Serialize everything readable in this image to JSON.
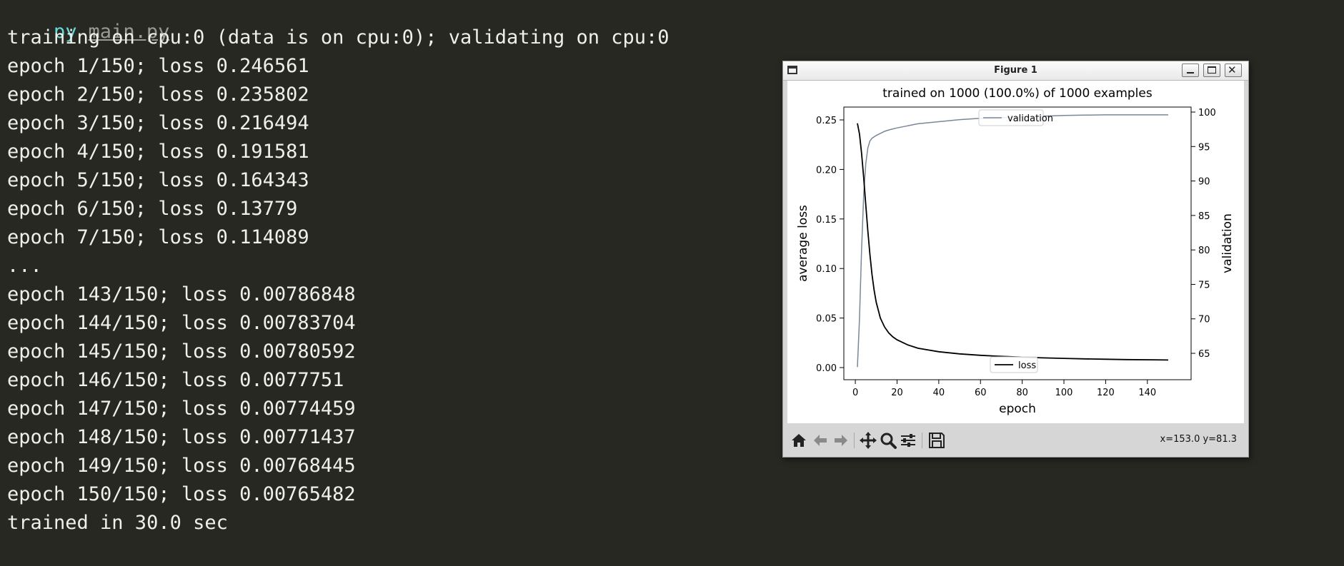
{
  "terminal": {
    "prompt": {
      "command": "py",
      "file": "main.py"
    },
    "lines": [
      "training on cpu:0 (data is on cpu:0); validating on cpu:0",
      "epoch 1/150; loss 0.246561",
      "epoch 2/150; loss 0.235802",
      "epoch 3/150; loss 0.216494",
      "epoch 4/150; loss 0.191581",
      "epoch 5/150; loss 0.164343",
      "epoch 6/150; loss 0.13779",
      "epoch 7/150; loss 0.114089",
      "...",
      "epoch 143/150; loss 0.00786848",
      "epoch 144/150; loss 0.00783704",
      "epoch 145/150; loss 0.00780592",
      "epoch 146/150; loss 0.0077751",
      "epoch 147/150; loss 0.00774459",
      "epoch 148/150; loss 0.00771437",
      "epoch 149/150; loss 0.00768445",
      "epoch 150/150; loss 0.00765482",
      "trained in 30.0 sec"
    ]
  },
  "window": {
    "title": "Figure 1",
    "toolbar": {
      "buttons": [
        "home-icon",
        "back-arrow-icon",
        "forward-arrow-icon",
        "pan-icon",
        "zoom-icon",
        "configure-subplots-icon",
        "save-icon"
      ],
      "coords": "x=153.0 y=81.3"
    }
  },
  "chart_data": {
    "type": "line",
    "title": "trained on 1000 (100.0%) of 1000 examples",
    "xlabel": "epoch",
    "ylabel": "average loss",
    "y2label": "validation",
    "xlim": [
      1,
      150
    ],
    "ylim": [
      0.0,
      0.25
    ],
    "y2lim": [
      62,
      100
    ],
    "x_ticks": [
      0,
      20,
      40,
      60,
      80,
      100,
      120,
      140
    ],
    "y_ticks": [
      "0.00",
      "0.05",
      "0.10",
      "0.15",
      "0.20",
      "0.25"
    ],
    "y2_ticks": [
      65,
      70,
      75,
      80,
      85,
      90,
      95,
      100
    ],
    "grid": false,
    "series": [
      {
        "name": "loss",
        "axis": "left",
        "color": "#000000",
        "legend": "bottom-center",
        "x": [
          1,
          2,
          3,
          4,
          5,
          6,
          7,
          8,
          9,
          10,
          12,
          14,
          16,
          18,
          20,
          25,
          30,
          40,
          50,
          60,
          70,
          80,
          90,
          100,
          110,
          120,
          130,
          143,
          150
        ],
        "y": [
          0.246561,
          0.235802,
          0.216494,
          0.191581,
          0.164343,
          0.13779,
          0.114089,
          0.094,
          0.078,
          0.066,
          0.05,
          0.041,
          0.035,
          0.031,
          0.028,
          0.023,
          0.0195,
          0.016,
          0.0138,
          0.0124,
          0.0113,
          0.0105,
          0.0098,
          0.0093,
          0.0088,
          0.0084,
          0.0081,
          0.00786848,
          0.00765482
        ]
      },
      {
        "name": "validation",
        "axis": "right",
        "color": "#7a8799",
        "legend": "top-center",
        "x": [
          1,
          2,
          3,
          4,
          5,
          6,
          7,
          8,
          10,
          12,
          14,
          16,
          20,
          25,
          30,
          40,
          50,
          60,
          70,
          80,
          90,
          100,
          110,
          120,
          130,
          140,
          150
        ],
        "y": [
          63,
          70,
          80,
          88,
          92.5,
          94.8,
          95.8,
          96.2,
          96.6,
          96.9,
          97.2,
          97.4,
          97.7,
          98.0,
          98.3,
          98.6,
          98.9,
          99.1,
          99.2,
          99.3,
          99.4,
          99.5,
          99.55,
          99.6,
          99.6,
          99.6,
          99.6
        ]
      }
    ]
  }
}
